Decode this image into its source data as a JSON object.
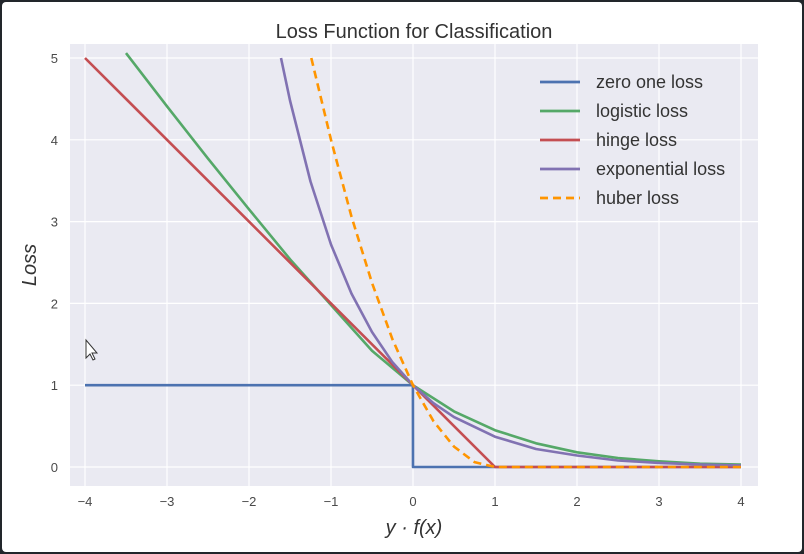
{
  "chart_data": {
    "type": "line",
    "title": "Loss Function for Classification",
    "xlabel": "y · f(x)",
    "ylabel": "Loss",
    "xlim": [
      -4,
      4
    ],
    "ylim": [
      0,
      5
    ],
    "x_ticks": [
      "−4",
      "−3",
      "−2",
      "−1",
      "0",
      "1",
      "2",
      "3",
      "4"
    ],
    "y_ticks": [
      "0",
      "1",
      "2",
      "3",
      "4",
      "5"
    ],
    "grid": true,
    "legend_position": "top-right",
    "series": [
      {
        "name": "zero one loss",
        "color": "#4c72b0",
        "dashed": false,
        "x": [
          -4,
          -3,
          -2,
          -1,
          -0.001,
          0,
          0.001,
          1,
          2,
          3,
          4
        ],
        "y": [
          1,
          1,
          1,
          1,
          1,
          0,
          0,
          0,
          0,
          0,
          0
        ]
      },
      {
        "name": "logistic loss",
        "color": "#55a868",
        "dashed": false,
        "x": [
          -3.5,
          -3,
          -2.5,
          -2,
          -1.5,
          -1,
          -0.5,
          0,
          0.5,
          1,
          1.5,
          2,
          2.5,
          3,
          3.5,
          4
        ],
        "y": [
          5.06,
          4.41,
          3.77,
          3.15,
          2.54,
          1.98,
          1.42,
          1.0,
          0.68,
          0.45,
          0.29,
          0.18,
          0.11,
          0.07,
          0.04,
          0.03
        ]
      },
      {
        "name": "hinge loss",
        "color": "#c44e52",
        "dashed": false,
        "x": [
          -4,
          -3,
          -2,
          -1,
          0,
          1,
          2,
          3,
          4
        ],
        "y": [
          5,
          4,
          3,
          2,
          1,
          0,
          0,
          0,
          0
        ]
      },
      {
        "name": "exponential loss",
        "color": "#8172b2",
        "dashed": false,
        "x": [
          -1.61,
          -1.5,
          -1.25,
          -1,
          -0.75,
          -0.5,
          -0.25,
          0,
          0.25,
          0.5,
          1,
          1.5,
          2,
          2.5,
          3,
          3.5,
          4
        ],
        "y": [
          5.0,
          4.48,
          3.49,
          2.72,
          2.12,
          1.65,
          1.28,
          1.0,
          0.78,
          0.61,
          0.37,
          0.22,
          0.14,
          0.08,
          0.05,
          0.03,
          0.02
        ]
      },
      {
        "name": "huber loss",
        "color": "#ff9500",
        "dashed": true,
        "x": [
          -1.24,
          -1,
          -0.75,
          -0.5,
          -0.25,
          0,
          0.25,
          0.5,
          0.75,
          1,
          2,
          3,
          4
        ],
        "y": [
          5.0,
          4.0,
          3.06,
          2.25,
          1.56,
          1.0,
          0.56,
          0.25,
          0.06,
          0,
          0,
          0,
          0
        ]
      }
    ]
  }
}
